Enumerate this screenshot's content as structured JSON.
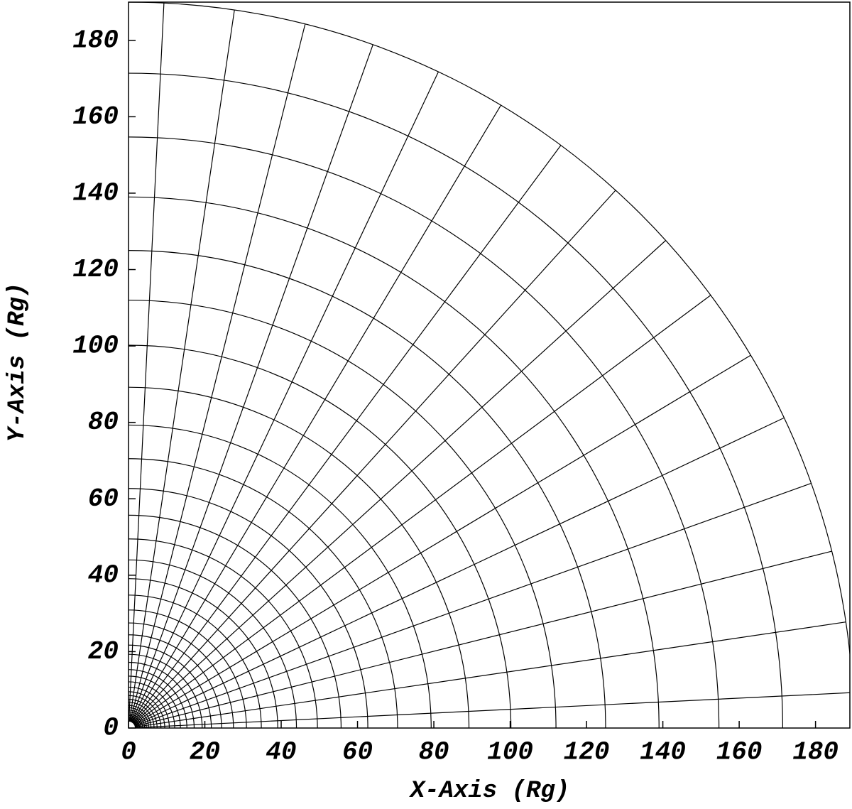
{
  "chart_data": {
    "type": "polar_grid",
    "x_label": "X-Axis (Rg)",
    "y_label": "Y-Axis (Rg)",
    "xlim": [
      0,
      189
    ],
    "ylim": [
      0,
      190
    ],
    "xticks": [
      0,
      20,
      40,
      60,
      80,
      100,
      120,
      140,
      160,
      180
    ],
    "yticks": [
      0,
      20,
      40,
      60,
      80,
      100,
      120,
      140,
      160,
      180
    ],
    "radii": [
      190,
      171.4,
      154.7,
      139,
      125,
      112,
      100.2,
      89.2,
      79.3,
      70.5,
      62.7,
      55.7,
      49.5,
      44,
      39.1,
      34.8,
      30.9,
      27.5,
      24.4,
      21.7,
      19.3,
      17.2,
      15.3,
      13.6,
      12.1,
      10.7,
      9.5,
      8.5,
      7.5,
      6.7,
      5.9,
      5.3,
      4.7,
      4.2,
      3.7,
      3.3,
      2.9,
      2.6,
      2.3,
      2.1,
      1.8
    ],
    "angles": [
      2.8,
      8.4,
      14.1,
      19.7,
      25.3,
      30.9,
      36.6,
      42.2,
      47.8,
      53.4,
      59.1,
      64.7,
      70.3,
      75.9,
      81.6,
      87.2
    ],
    "color": "#000000"
  }
}
